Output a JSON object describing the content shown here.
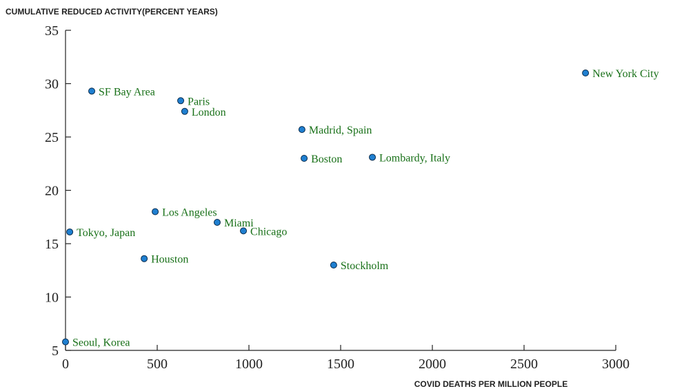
{
  "chart_data": {
    "type": "scatter",
    "ylabel": "CUMULATIVE REDUCED ACTIVITY(PERCENT YEARS)",
    "xlabel": "COVID DEATHS PER MILLION PEOPLE",
    "labels": [
      "New York City",
      "SF Bay Area",
      "Paris",
      "London",
      "Madrid, Spain",
      "Boston",
      "Lombardy, Italy",
      "Los Angeles",
      "Miami",
      "Chicago",
      "Tokyo, Japan",
      "Houston",
      "Stockholm",
      "Seoul, Korea"
    ],
    "x": [
      2835,
      143,
      628,
      650,
      1289,
      1301,
      1673,
      489,
      827,
      970,
      23,
      429,
      1462,
      0
    ],
    "values": [
      31.0,
      29.3,
      28.4,
      27.4,
      25.7,
      23.0,
      23.1,
      18.0,
      17.0,
      16.2,
      16.1,
      13.6,
      13.0,
      5.8
    ],
    "color": "#1f7fd0",
    "label_color": "#187018",
    "xlim": [
      0,
      3000
    ],
    "xticks": [
      0,
      500,
      1000,
      1500,
      2000,
      2500,
      3000
    ],
    "ylim": [
      5,
      35
    ],
    "yticks": [
      5,
      10,
      15,
      20,
      25,
      30,
      35
    ]
  }
}
